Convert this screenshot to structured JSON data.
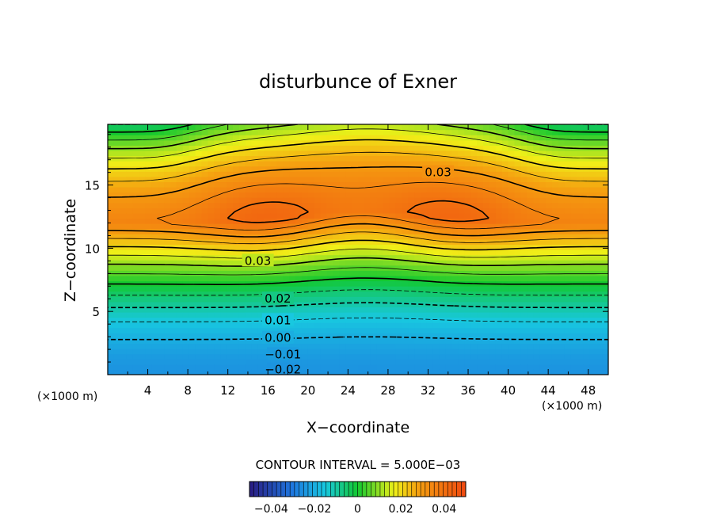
{
  "chart_data": {
    "type": "contour",
    "title": "disturbunce of Exner",
    "xlabel": "X−coordinate",
    "ylabel": "Z−coordinate",
    "x_unit_left": "(×1000 m)",
    "x_unit_right": "(×1000 m)",
    "xlim": [
      0,
      50
    ],
    "ylim": [
      0,
      19.8
    ],
    "x_ticks": [
      "4",
      "8",
      "12",
      "16",
      "20",
      "24",
      "28",
      "32",
      "36",
      "40",
      "44",
      "48"
    ],
    "x_tick_values": [
      4,
      8,
      12,
      16,
      20,
      24,
      28,
      32,
      36,
      40,
      44,
      48
    ],
    "y_ticks": [
      "5",
      "10",
      "15"
    ],
    "y_tick_values": [
      5,
      10,
      15
    ],
    "contour_interval_text": "CONTOUR INTERVAL = 5.000E−03",
    "contour_interval": 0.005,
    "negative_contours_dashed": true,
    "contour_labels": [
      {
        "text": "0.03",
        "x": 33.0,
        "z": 16.0,
        "level": 0.03
      },
      {
        "text": "0.03",
        "x": 15.0,
        "z": 9.0,
        "level": 0.03
      },
      {
        "text": "0.02",
        "x": 17.0,
        "z": 6.0,
        "level": 0.02
      },
      {
        "text": "0.01",
        "x": 17.0,
        "z": 4.3,
        "level": 0.01
      },
      {
        "text": "0.00",
        "x": 17.0,
        "z": 2.9,
        "level": 0.0
      },
      {
        "text": "−0.01",
        "x": 17.5,
        "z": 1.6,
        "level": -0.01
      },
      {
        "text": "−0.02",
        "x": 17.5,
        "z": 0.4,
        "level": -0.02
      }
    ],
    "field_description": "Exner perturbation: about −0.025 near the surface, rising to about 0.036 in a double-centred maximum near z ≈ 12 (x ≈ 15 and x ≈ 34), decreasing toward the top corners.",
    "colorbar": {
      "range": [
        -0.05,
        0.05
      ],
      "tick_labels": [
        "−0.04",
        "−0.02",
        "0",
        "0.02",
        "0.04"
      ],
      "tick_values": [
        -0.04,
        -0.02,
        0,
        0.02,
        0.04
      ]
    },
    "colors": {
      "lowest": "#2a1a80",
      "blue": "#1e78e0",
      "cyan": "#18c8e0",
      "green": "#12c830",
      "yellow": "#f0f018",
      "orange": "#f5a010",
      "red": "#f04810"
    }
  }
}
